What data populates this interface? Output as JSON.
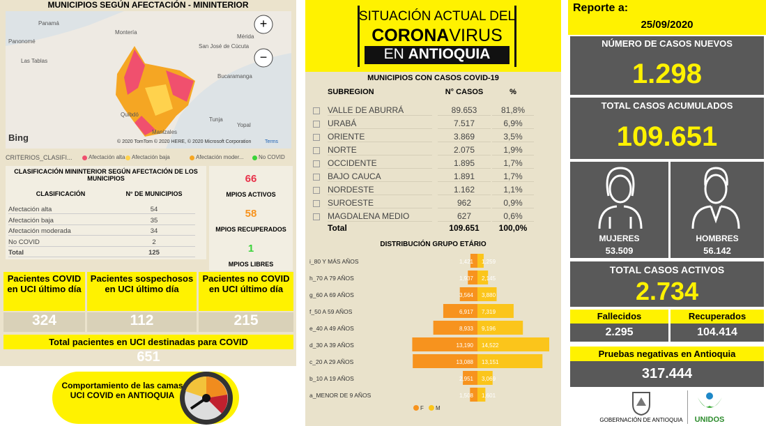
{
  "map": {
    "title": "MUNICIPIOS SEGÚN AFECTACIÓN - MININTERIOR",
    "places": [
      "Panamá",
      "Panonomé",
      "Las Tablas",
      "Montería",
      "San José de Cúcuta",
      "Bucaramanga",
      "Mérida",
      "Quibdó",
      "Manizales",
      "Tunja",
      "Yopal"
    ],
    "brand": "Bing",
    "copyright": "© 2020 TomTom © 2020 HERE, © 2020 Microsoft Corporation",
    "terms": "Terms",
    "legend_title": "CRITERIOS_CLASIFI...",
    "legend": [
      "Afectación alta",
      "Afectación baja",
      "Afectación moder...",
      "No COVID"
    ]
  },
  "classification": {
    "title": "CLASIFICACIÓN MININTERIOR SEGÚN AFECTACIÓN DE LOS MUNICIPIOS",
    "headers": [
      "CLASIFICACIÓN",
      "N° DE MUNICIPIOS"
    ],
    "rows": [
      [
        "Afectación alta",
        54
      ],
      [
        "Afectación baja",
        35
      ],
      [
        "Afectación moderada",
        34
      ],
      [
        "No COVID",
        2
      ]
    ],
    "total": [
      "Total",
      125
    ]
  },
  "stats": [
    {
      "value": 66,
      "label": "MPIOS ACTIVOS"
    },
    {
      "value": 58,
      "label": "MPIOS RECUPERADOS"
    },
    {
      "value": 1,
      "label": "MPIOS LIBRES"
    }
  ],
  "uci": {
    "cards": [
      {
        "label": "Pacientes COVID en UCI último día",
        "value": 324
      },
      {
        "label": "Pacientes sospechosos en UCI último día",
        "value": 112
      },
      {
        "label": "Pacientes no COVID en UCI último día",
        "value": 215
      }
    ],
    "total_label": "Total pacientes en UCI destinadas para COVID",
    "total": 651,
    "button": "Comportamiento de las camas UCI COVID en ANTIOQUIA"
  },
  "header": {
    "line1": "SITUACIÓN ACTUAL DEL",
    "line2a": "CORONA",
    "line2b": "VIRUS",
    "line3a": "EN",
    "line3b": "ANTIOQUIA"
  },
  "municipios_table": {
    "title": "MUNICIPIOS CON CASOS COVID-19",
    "headers": [
      "SUBREGION",
      "N° CASOS",
      "%"
    ],
    "rows": [
      [
        "VALLE DE ABURRÁ",
        "89.653",
        "81,8%"
      ],
      [
        "URABÁ",
        "7.517",
        "6,9%"
      ],
      [
        "ORIENTE",
        "3.869",
        "3,5%"
      ],
      [
        "NORTE",
        "2.075",
        "1,9%"
      ],
      [
        "OCCIDENTE",
        "1.895",
        "1,7%"
      ],
      [
        "BAJO CAUCA",
        "1.891",
        "1,7%"
      ],
      [
        "NORDESTE",
        "1.162",
        "1,1%"
      ],
      [
        "SUROESTE",
        "962",
        "0,9%"
      ],
      [
        "MAGDALENA MEDIO",
        "627",
        "0,6%"
      ]
    ],
    "total": [
      "Total",
      "109.651",
      "100,0%"
    ]
  },
  "chart_data": {
    "type": "pyramid",
    "title": "DISTRIBUCIÓN GRUPO ETÁRIO",
    "categories": [
      "i_80 Y MÁS AÑOS",
      "h_70 A 79 AÑOS",
      "g_60 A 69 AÑOS",
      "f_50 A 59 AÑOS",
      "e_40 A 49 AÑOS",
      "d_30 A 39 AÑOS",
      "c_20 A 29 AÑOS",
      "b_10 A 19 AÑOS",
      "a_MENOR DE 9 AÑOS"
    ],
    "series": [
      {
        "name": "F",
        "color": "#f7931e",
        "values": [
          1421,
          1937,
          3564,
          6917,
          8933,
          13190,
          13088,
          2951,
          1508
        ],
        "value_labels": [
          "1,421",
          "1,937",
          "3,564",
          "6,917",
          "8,933",
          "13,190",
          "13,088",
          "2,951",
          "1,508"
        ]
      },
      {
        "name": "M",
        "color": "#fbc51b",
        "values": [
          1259,
          2145,
          3880,
          7319,
          9196,
          14522,
          13151,
          3069,
          1601
        ],
        "value_labels": [
          "1,259",
          "2,145",
          "3,880",
          "7,319",
          "9,196",
          "14,522",
          "13,151",
          "3,069",
          "1,601"
        ]
      }
    ]
  },
  "report": {
    "label": "Reporte a:",
    "date": "25/09/2020",
    "new_label": "NÚMERO DE CASOS NUEVOS",
    "new": "1.298",
    "total_label": "TOTAL CASOS ACUMULADOS",
    "total": "109.651",
    "women_label": "MUJERES",
    "women": "53.509",
    "men_label": "HOMBRES",
    "men": "56.142",
    "active_label": "TOTAL CASOS ACTIVOS",
    "active": "2.734",
    "deaths_label": "Fallecidos",
    "deaths": "2.295",
    "recovered_label": "Recuperados",
    "recovered": "104.414",
    "negative_label": "Pruebas negativas en Antioquia",
    "negative": "317.444",
    "logo1": "GOBERNACIÓN DE ANTIOQUIA",
    "logo2": "UNIDOS"
  }
}
